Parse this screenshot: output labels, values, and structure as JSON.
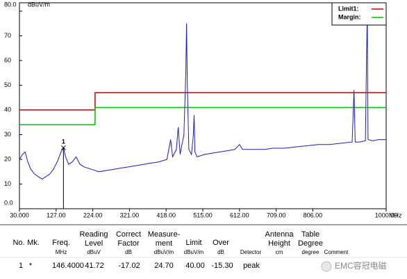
{
  "chart_data": {
    "type": "line",
    "y_label": "dBuV/m",
    "x_label": "MHz",
    "xlim": [
      30,
      1000
    ],
    "ylim": [
      0,
      80
    ],
    "xticks": [
      {
        "value": 30,
        "label": "30.000"
      },
      {
        "value": 127,
        "label": "127.00"
      },
      {
        "value": 224,
        "label": "224.00"
      },
      {
        "value": 321,
        "label": "321.00"
      },
      {
        "value": 418,
        "label": "418.00"
      },
      {
        "value": 515,
        "label": "515.00"
      },
      {
        "value": 612,
        "label": "612.00"
      },
      {
        "value": 709,
        "label": "709.00"
      },
      {
        "value": 806,
        "label": "806.00"
      },
      {
        "value": 1000,
        "label": "1000.00"
      }
    ],
    "yticks": [
      {
        "value": 0,
        "label": "0.0"
      },
      10,
      20,
      30,
      40,
      50,
      60,
      70,
      {
        "value": 80,
        "label": "80.0"
      }
    ],
    "grid": false,
    "legend": "top-right",
    "marker": {
      "label": "1",
      "x": 146.4,
      "value": 24.7
    },
    "series": [
      {
        "name": "Limit1:",
        "color": "#c00000",
        "x": [
          30,
          230,
          230,
          1000
        ],
        "values": [
          40,
          40,
          47,
          47
        ]
      },
      {
        "name": "Margin:",
        "color": "#00c000",
        "x": [
          30,
          230,
          230,
          1000
        ],
        "values": [
          34,
          34,
          41,
          41
        ]
      },
      {
        "color": "#1a1ad0",
        "x": [
          30,
          38,
          45,
          52,
          60,
          70,
          80,
          90,
          100,
          110,
          120,
          130,
          140,
          146.4,
          152,
          160,
          170,
          180,
          190,
          200,
          220,
          240,
          260,
          280,
          300,
          320,
          340,
          360,
          380,
          400,
          420,
          430,
          435,
          445,
          450,
          455,
          465,
          470,
          472,
          474,
          478,
          485,
          490,
          492,
          494,
          500,
          520,
          540,
          560,
          580,
          600,
          612,
          620,
          650,
          680,
          700,
          730,
          760,
          790,
          820,
          850,
          880,
          910,
          915,
          918,
          930,
          945,
          948,
          950,
          952,
          965,
          980,
          1000
        ],
        "values": [
          20,
          22,
          23,
          19,
          16,
          14,
          13,
          12,
          13,
          14,
          16,
          19,
          23,
          24.7,
          21,
          18,
          19,
          21,
          18,
          17,
          16,
          15,
          15.5,
          16,
          16.5,
          17,
          17.5,
          18,
          18.5,
          19,
          20,
          28,
          21,
          24,
          33,
          22,
          30,
          55,
          75,
          50,
          24,
          22,
          30,
          38,
          23,
          21,
          22,
          22.5,
          23,
          23.5,
          24,
          26,
          24,
          24,
          24,
          24.5,
          24.5,
          25,
          25.5,
          26,
          26,
          26.5,
          27,
          48,
          27,
          27,
          27.5,
          60,
          80,
          28,
          27.5,
          28,
          28
        ]
      }
    ]
  },
  "table": {
    "headers": [
      [
        "No."
      ],
      [
        "Mk."
      ],
      [
        "Freq."
      ],
      [
        "Reading",
        "Level"
      ],
      [
        "Correct",
        "Factor"
      ],
      [
        "Measure-",
        "ment"
      ],
      [
        "Limit"
      ],
      [
        "Over"
      ],
      [
        "Antenna",
        "Height"
      ],
      [
        "Table",
        "Degree"
      ]
    ],
    "units": [
      "MHz",
      "dBuV",
      "dB",
      "dBuV/m",
      "dBuV/m",
      "dB",
      "Detector",
      "cm",
      "degree",
      "Comment"
    ],
    "rows": [
      [
        "1",
        "*",
        "146.4000",
        "41.72",
        "-17.02",
        "24.70",
        "40.00",
        "-15.30",
        "peak"
      ]
    ],
    "watermark": "EMC容冠电磁"
  }
}
